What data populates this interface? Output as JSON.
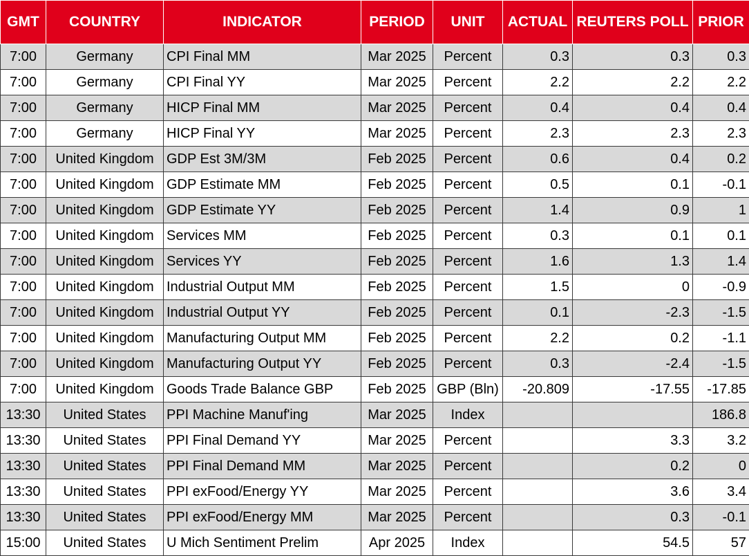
{
  "headers": {
    "gmt": "GMT",
    "country": "COUNTRY",
    "indicator": "INDICATOR",
    "period": "PERIOD",
    "unit": "UNIT",
    "actual": "ACTUAL",
    "poll": "REUTERS POLL",
    "prior": "PRIOR"
  },
  "colors": {
    "header_bg": "#e0001b",
    "header_text": "#ffffff",
    "stripe": "#d9d9d9"
  },
  "rows": [
    {
      "gmt": "7:00",
      "country": "Germany",
      "indicator": "CPI Final MM",
      "period": "Mar 2025",
      "unit": "Percent",
      "actual": "0.3",
      "poll": "0.3",
      "prior": "0.3"
    },
    {
      "gmt": "7:00",
      "country": "Germany",
      "indicator": "CPI Final YY",
      "period": "Mar 2025",
      "unit": "Percent",
      "actual": "2.2",
      "poll": "2.2",
      "prior": "2.2"
    },
    {
      "gmt": "7:00",
      "country": "Germany",
      "indicator": "HICP Final MM",
      "period": "Mar 2025",
      "unit": "Percent",
      "actual": "0.4",
      "poll": "0.4",
      "prior": "0.4"
    },
    {
      "gmt": "7:00",
      "country": "Germany",
      "indicator": "HICP Final YY",
      "period": "Mar 2025",
      "unit": "Percent",
      "actual": "2.3",
      "poll": "2.3",
      "prior": "2.3"
    },
    {
      "gmt": "7:00",
      "country": "United Kingdom",
      "indicator": "GDP Est 3M/3M",
      "period": "Feb 2025",
      "unit": "Percent",
      "actual": "0.6",
      "poll": "0.4",
      "prior": "0.2"
    },
    {
      "gmt": "7:00",
      "country": "United Kingdom",
      "indicator": "GDP Estimate MM",
      "period": "Feb 2025",
      "unit": "Percent",
      "actual": "0.5",
      "poll": "0.1",
      "prior": "-0.1"
    },
    {
      "gmt": "7:00",
      "country": "United Kingdom",
      "indicator": "GDP Estimate YY",
      "period": "Feb 2025",
      "unit": "Percent",
      "actual": "1.4",
      "poll": "0.9",
      "prior": "1"
    },
    {
      "gmt": "7:00",
      "country": "United Kingdom",
      "indicator": "Services MM",
      "period": "Feb 2025",
      "unit": "Percent",
      "actual": "0.3",
      "poll": "0.1",
      "prior": "0.1"
    },
    {
      "gmt": "7:00",
      "country": "United Kingdom",
      "indicator": "Services YY",
      "period": "Feb 2025",
      "unit": "Percent",
      "actual": "1.6",
      "poll": "1.3",
      "prior": "1.4"
    },
    {
      "gmt": "7:00",
      "country": "United Kingdom",
      "indicator": "Industrial Output MM",
      "period": "Feb 2025",
      "unit": "Percent",
      "actual": "1.5",
      "poll": "0",
      "prior": "-0.9"
    },
    {
      "gmt": "7:00",
      "country": "United Kingdom",
      "indicator": "Industrial Output YY",
      "period": "Feb 2025",
      "unit": "Percent",
      "actual": "0.1",
      "poll": "-2.3",
      "prior": "-1.5"
    },
    {
      "gmt": "7:00",
      "country": "United Kingdom",
      "indicator": "Manufacturing Output MM",
      "period": "Feb 2025",
      "unit": "Percent",
      "actual": "2.2",
      "poll": "0.2",
      "prior": "-1.1"
    },
    {
      "gmt": "7:00",
      "country": "United Kingdom",
      "indicator": "Manufacturing Output YY",
      "period": "Feb 2025",
      "unit": "Percent",
      "actual": "0.3",
      "poll": "-2.4",
      "prior": "-1.5"
    },
    {
      "gmt": "7:00",
      "country": "United Kingdom",
      "indicator": "Goods Trade Balance GBP",
      "period": "Feb 2025",
      "unit": "GBP (Bln)",
      "actual": "-20.809",
      "poll": "-17.55",
      "prior": "-17.85"
    },
    {
      "gmt": "13:30",
      "country": "United States",
      "indicator": "PPI Machine Manuf'ing",
      "period": "Mar 2025",
      "unit": "Index",
      "actual": "",
      "poll": "",
      "prior": "186.8"
    },
    {
      "gmt": "13:30",
      "country": "United States",
      "indicator": "PPI Final Demand YY",
      "period": "Mar 2025",
      "unit": "Percent",
      "actual": "",
      "poll": "3.3",
      "prior": "3.2"
    },
    {
      "gmt": "13:30",
      "country": "United States",
      "indicator": "PPI Final Demand MM",
      "period": "Mar 2025",
      "unit": "Percent",
      "actual": "",
      "poll": "0.2",
      "prior": "0"
    },
    {
      "gmt": "13:30",
      "country": "United States",
      "indicator": "PPI exFood/Energy YY",
      "period": "Mar 2025",
      "unit": "Percent",
      "actual": "",
      "poll": "3.6",
      "prior": "3.4"
    },
    {
      "gmt": "13:30",
      "country": "United States",
      "indicator": "PPI exFood/Energy MM",
      "period": "Mar 2025",
      "unit": "Percent",
      "actual": "",
      "poll": "0.3",
      "prior": "-0.1"
    },
    {
      "gmt": "15:00",
      "country": "United States",
      "indicator": "U Mich Sentiment Prelim",
      "period": "Apr 2025",
      "unit": "Index",
      "actual": "",
      "poll": "54.5",
      "prior": "57"
    }
  ]
}
